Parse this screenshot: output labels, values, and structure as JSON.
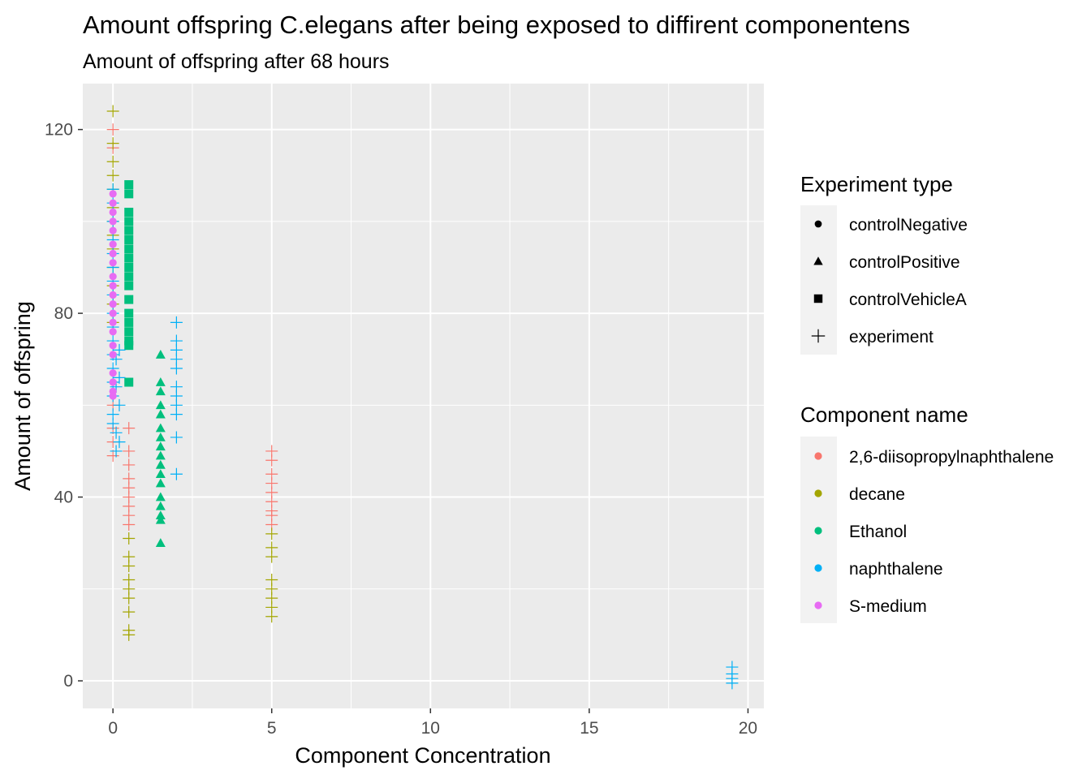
{
  "chart_data": {
    "type": "scatter",
    "title": "Amount offspring C.elegans after being exposed to diffirent componentens",
    "subtitle": "Amount of offspring after 68 hours",
    "xlabel": "Component Concentration",
    "ylabel": "Amount of offspring",
    "xlim": [
      -0.95,
      20.5
    ],
    "ylim": [
      -6,
      130
    ],
    "x_ticks": [
      0,
      5,
      10,
      15,
      20
    ],
    "y_ticks": [
      0,
      40,
      80,
      120
    ],
    "grid": true,
    "legend_position": "right",
    "shape_legend": {
      "title": "Experiment type",
      "items": [
        {
          "label": "controlNegative",
          "shape": "circle"
        },
        {
          "label": "controlPositive",
          "shape": "triangle"
        },
        {
          "label": "controlVehicleA",
          "shape": "square"
        },
        {
          "label": "experiment",
          "shape": "plus"
        }
      ]
    },
    "color_legend": {
      "title": "Component name",
      "items": [
        {
          "label": "2,6-diisopropylnaphthalene",
          "color": "#F8766D"
        },
        {
          "label": "decane",
          "color": "#A3A500"
        },
        {
          "label": "Ethanol",
          "color": "#00BF7D"
        },
        {
          "label": "naphthalene",
          "color": "#00B0F6"
        },
        {
          "label": "S-medium",
          "color": "#E76BF3"
        }
      ]
    },
    "series": [
      {
        "component": "2,6-diisopropylnaphthalene",
        "type": "experiment",
        "points": [
          [
            0,
            120
          ],
          [
            0,
            116
          ],
          [
            0,
            49
          ],
          [
            0,
            52
          ],
          [
            0,
            60
          ],
          [
            0,
            55
          ],
          [
            0.5,
            55
          ],
          [
            0.5,
            50
          ],
          [
            0.5,
            47
          ],
          [
            0.5,
            44
          ],
          [
            0.5,
            42
          ],
          [
            0.5,
            40
          ],
          [
            0.5,
            38
          ],
          [
            0.5,
            36
          ],
          [
            0.5,
            34
          ],
          [
            5,
            50
          ],
          [
            5,
            48
          ],
          [
            5,
            45
          ],
          [
            5,
            43
          ],
          [
            5,
            41
          ],
          [
            5,
            39
          ],
          [
            5,
            37
          ],
          [
            5,
            36
          ],
          [
            5,
            34
          ]
        ]
      },
      {
        "component": "decane",
        "type": "experiment",
        "points": [
          [
            0,
            124
          ],
          [
            0,
            117
          ],
          [
            0,
            113
          ],
          [
            0,
            110
          ],
          [
            0,
            107
          ],
          [
            0,
            103
          ],
          [
            0,
            100
          ],
          [
            0,
            97
          ],
          [
            0,
            94
          ],
          [
            0,
            90
          ],
          [
            0,
            86
          ],
          [
            0,
            82
          ],
          [
            0,
            78
          ],
          [
            0.5,
            31
          ],
          [
            0.5,
            27
          ],
          [
            0.5,
            25
          ],
          [
            0.5,
            22
          ],
          [
            0.5,
            20
          ],
          [
            0.5,
            18
          ],
          [
            0.5,
            15
          ],
          [
            0.5,
            11
          ],
          [
            0.5,
            10
          ],
          [
            5,
            32
          ],
          [
            5,
            29
          ],
          [
            5,
            27
          ],
          [
            5,
            22
          ],
          [
            5,
            20
          ],
          [
            5,
            18
          ],
          [
            5,
            16
          ],
          [
            5,
            14
          ]
        ]
      },
      {
        "component": "Ethanol",
        "type": "controlVehicleA",
        "points": [
          [
            0.5,
            108
          ],
          [
            0.5,
            106
          ],
          [
            0.5,
            102
          ],
          [
            0.5,
            100
          ],
          [
            0.5,
            98
          ],
          [
            0.5,
            96
          ],
          [
            0.5,
            94
          ],
          [
            0.5,
            92
          ],
          [
            0.5,
            90
          ],
          [
            0.5,
            88
          ],
          [
            0.5,
            86
          ],
          [
            0.5,
            83
          ],
          [
            0.5,
            80
          ],
          [
            0.5,
            78
          ],
          [
            0.5,
            76
          ],
          [
            0.5,
            74
          ],
          [
            0.5,
            73
          ],
          [
            0.5,
            65
          ]
        ]
      },
      {
        "component": "Ethanol",
        "type": "controlPositive",
        "points": [
          [
            1.5,
            71
          ],
          [
            1.5,
            65
          ],
          [
            1.5,
            63
          ],
          [
            1.5,
            60
          ],
          [
            1.5,
            58
          ],
          [
            1.5,
            55
          ],
          [
            1.5,
            53
          ],
          [
            1.5,
            51
          ],
          [
            1.5,
            49
          ],
          [
            1.5,
            47
          ],
          [
            1.5,
            45
          ],
          [
            1.5,
            43
          ],
          [
            1.5,
            40
          ],
          [
            1.5,
            38
          ],
          [
            1.5,
            36
          ],
          [
            1.5,
            35
          ],
          [
            1.5,
            30
          ]
        ]
      },
      {
        "component": "naphthalene",
        "type": "experiment",
        "points": [
          [
            0,
            107
          ],
          [
            0,
            104
          ],
          [
            0,
            100
          ],
          [
            0,
            96
          ],
          [
            0,
            93
          ],
          [
            0,
            90
          ],
          [
            0,
            87
          ],
          [
            0,
            84
          ],
          [
            0,
            80
          ],
          [
            0,
            77
          ],
          [
            0,
            74
          ],
          [
            0,
            71
          ],
          [
            0,
            68
          ],
          [
            0,
            65
          ],
          [
            0,
            62
          ],
          [
            0,
            58
          ],
          [
            0,
            56
          ],
          [
            0.1,
            54
          ],
          [
            0.2,
            52
          ],
          [
            0.1,
            50
          ],
          [
            0.2,
            72
          ],
          [
            0.1,
            70
          ],
          [
            0.2,
            66
          ],
          [
            0.1,
            64
          ],
          [
            0.2,
            60
          ],
          [
            2,
            78
          ],
          [
            2,
            74
          ],
          [
            2,
            72
          ],
          [
            2,
            70
          ],
          [
            2,
            68
          ],
          [
            2,
            64
          ],
          [
            2,
            62
          ],
          [
            2,
            60
          ],
          [
            2,
            58
          ],
          [
            2,
            53
          ],
          [
            2,
            45
          ],
          [
            19.5,
            3
          ],
          [
            19.5,
            1.5
          ],
          [
            19.5,
            0.5
          ],
          [
            19.5,
            -0.5
          ]
        ]
      },
      {
        "component": "S-medium",
        "type": "controlNegative",
        "points": [
          [
            0,
            106
          ],
          [
            0,
            104
          ],
          [
            0,
            102
          ],
          [
            0,
            100
          ],
          [
            0,
            98
          ],
          [
            0,
            95
          ],
          [
            0,
            93
          ],
          [
            0,
            91
          ],
          [
            0,
            88
          ],
          [
            0,
            86
          ],
          [
            0,
            84
          ],
          [
            0,
            82
          ],
          [
            0,
            80
          ],
          [
            0,
            78
          ],
          [
            0,
            76
          ],
          [
            0,
            73
          ],
          [
            0,
            71
          ],
          [
            0,
            67
          ],
          [
            0,
            65
          ],
          [
            0,
            63
          ],
          [
            0,
            62
          ]
        ]
      }
    ]
  }
}
